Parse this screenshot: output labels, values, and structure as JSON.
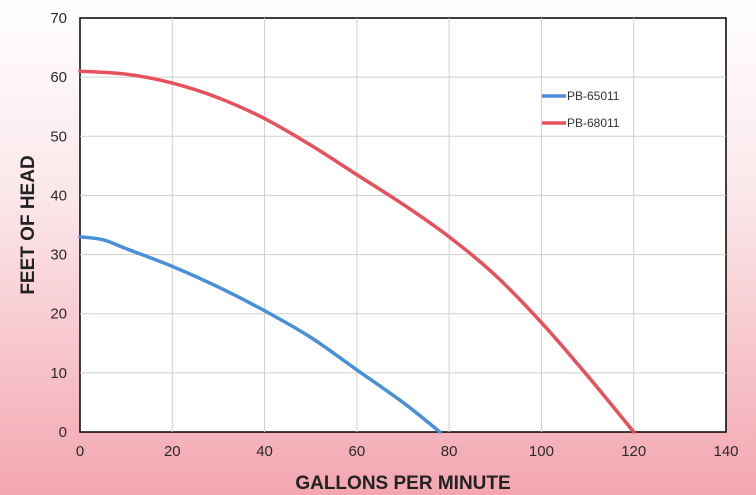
{
  "chart_data": {
    "type": "line",
    "title": "",
    "xlabel": "GALLONS PER MINUTE",
    "ylabel": "FEET OF HEAD",
    "xlim": [
      0,
      140
    ],
    "ylim": [
      0,
      70
    ],
    "xticks": [
      0,
      20,
      40,
      60,
      80,
      100,
      120,
      140
    ],
    "yticks": [
      0,
      10,
      20,
      30,
      40,
      50,
      60,
      70
    ],
    "grid": true,
    "legend_position": "top-right",
    "series": [
      {
        "name": "PB-65011",
        "color": "#4a90d9",
        "x": [
          0,
          5,
          10,
          20,
          30,
          40,
          50,
          60,
          70,
          78
        ],
        "y": [
          33,
          32.5,
          31,
          28,
          24.5,
          20.5,
          16,
          10.5,
          5,
          0
        ]
      },
      {
        "name": "PB-68011",
        "color": "#e8505b",
        "x": [
          0,
          10,
          20,
          30,
          40,
          50,
          60,
          70,
          80,
          90,
          100,
          110,
          120
        ],
        "y": [
          61,
          60.5,
          59,
          56.5,
          53,
          48.5,
          43.5,
          38.5,
          33,
          26.5,
          18.5,
          9.5,
          0
        ]
      }
    ]
  }
}
